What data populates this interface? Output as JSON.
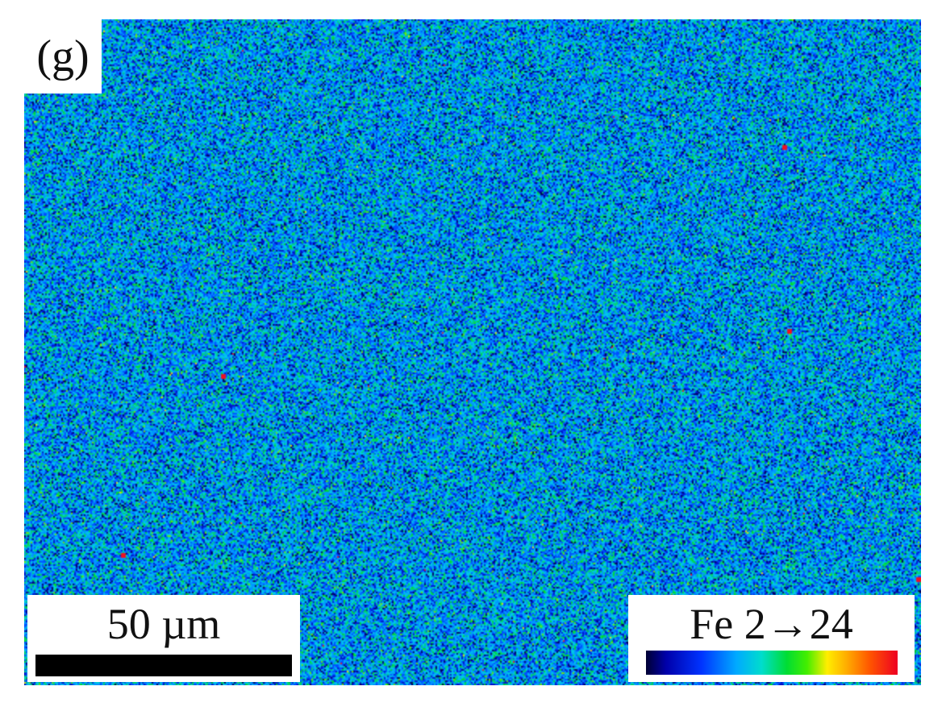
{
  "panel": {
    "label": "(g)"
  },
  "scale_bar": {
    "label": "50 µm"
  },
  "legend": {
    "label": "Fe 2→24"
  },
  "colors": {
    "map_base": "#2e8fe6",
    "low": "#000080",
    "mid": "#00aaff",
    "high_green": "#00dd33",
    "peak": "#ee0022"
  }
}
